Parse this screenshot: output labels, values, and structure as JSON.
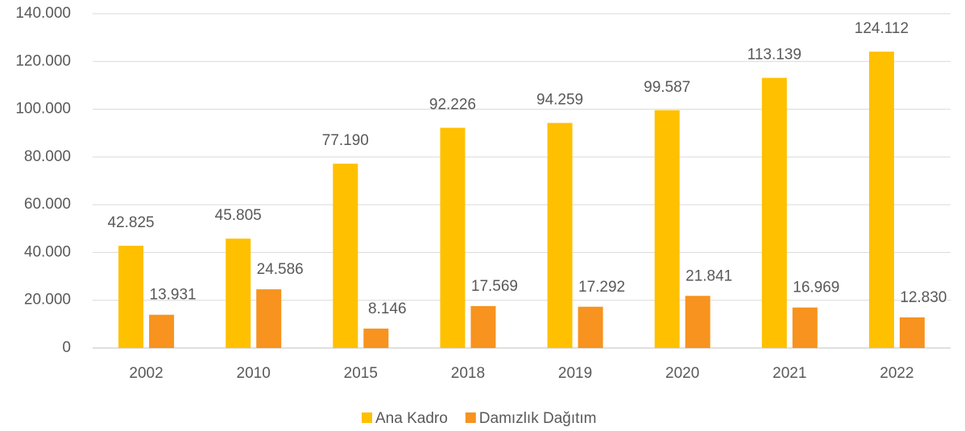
{
  "chart_data": {
    "type": "bar",
    "categories": [
      "2002",
      "2010",
      "2015",
      "2018",
      "2019",
      "2020",
      "2021",
      "2022"
    ],
    "series": [
      {
        "name": "Ana Kadro",
        "color": "#FFC000",
        "values": [
          42825,
          45805,
          77190,
          92226,
          94259,
          99587,
          113139,
          124112
        ],
        "value_labels": [
          "42.825",
          "45.805",
          "77.190",
          "92.226",
          "94.259",
          "99.587",
          "113.139",
          "124.112"
        ]
      },
      {
        "name": "Damızlık Dağıtım",
        "color": "#F7931E",
        "values": [
          13931,
          24586,
          8146,
          17569,
          17292,
          21841,
          16969,
          12830
        ],
        "value_labels": [
          "13.931",
          "24.586",
          "8.146",
          "17.569",
          "17.292",
          "21.841",
          "16.969",
          "12.830"
        ]
      }
    ],
    "ylim": [
      0,
      140000
    ],
    "yticks": [
      0,
      {
        "value": 20000,
        "label": "20.000"
      },
      {
        "value": 40000,
        "label": "40.000"
      },
      {
        "value": 60000,
        "label": "60.000"
      },
      {
        "value": 80000,
        "label": "80.000"
      },
      {
        "value": 100000,
        "label": "100.000"
      },
      {
        "value": 120000,
        "label": "120.000"
      },
      {
        "value": 140000,
        "label": "140.000"
      }
    ],
    "grid": true,
    "legend": "bottom"
  }
}
